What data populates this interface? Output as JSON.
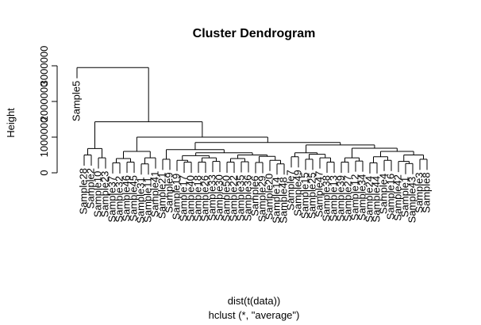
{
  "chart_data": {
    "type": "dendrogram",
    "title": "Cluster Dendrogram",
    "y_label": "Height",
    "x_label": "dist(t(data))",
    "subtitle": "hclust (*, \"average\")",
    "ylim": [
      0,
      3000000
    ],
    "yticks": [
      0,
      1000000,
      2000000,
      3000000
    ],
    "color": "#000000",
    "tree": {
      "height": 2950000,
      "children": [
        "Sample5",
        {
          "height": 1430000,
          "children": [
            {
              "height": 680000,
              "children": [
                {
                  "height": 500000,
                  "children": [
                    "Sample28",
                    "Sample2"
                  ]
                },
                {
                  "height": 420000,
                  "children": [
                    "Sample10",
                    "Sample23"
                  ]
                }
              ]
            },
            {
              "height": 1000000,
              "children": [
                {
                  "height": 600000,
                  "children": [
                    {
                      "height": 400000,
                      "children": [
                        {
                          "height": 280000,
                          "children": [
                            "Sample37",
                            "Sample32"
                          ]
                        },
                        {
                          "height": 300000,
                          "children": [
                            "Sample46",
                            "Sample45"
                          ]
                        }
                      ]
                    },
                    {
                      "height": 420000,
                      "children": [
                        {
                          "height": 250000,
                          "children": [
                            "Sample31",
                            "Sample11"
                          ]
                        },
                        "Sample41"
                      ]
                    }
                  ]
                },
                {
                  "height": 850000,
                  "children": [
                    {
                      "height": 650000,
                      "children": [
                        {
                          "height": 380000,
                          "children": [
                            "Sample21",
                            "Sample9"
                          ]
                        },
                        {
                          "height": 560000,
                          "children": [
                            {
                              "height": 480000,
                              "children": [
                                {
                                  "height": 350000,
                                  "children": [
                                    "Sample19",
                                    {
                                      "height": 300000,
                                      "children": [
                                        "Sample17",
                                        "Sample40"
                                      ]
                                    }
                                  ]
                                },
                                {
                                  "height": 420000,
                                  "children": [
                                    {
                                      "height": 300000,
                                      "children": [
                                        "Sample18",
                                        "Sample26"
                                      ]
                                    },
                                    {
                                      "height": 320000,
                                      "children": [
                                        "Sample33",
                                        "Sample30"
                                      ]
                                    }
                                  ]
                                }
                              ]
                            },
                            {
                              "height": 500000,
                              "children": [
                                {
                                  "height": 400000,
                                  "children": [
                                    {
                                      "height": 300000,
                                      "children": [
                                        "Sample50",
                                        "Sample22"
                                      ]
                                    },
                                    {
                                      "height": 310000,
                                      "children": [
                                        "Sample35",
                                        "Sample36"
                                      ]
                                    }
                                  ]
                                },
                                {
                                  "height": 460000,
                                  "children": [
                                    {
                                      "height": 290000,
                                      "children": [
                                        "Sample6",
                                        "Sample29"
                                      ]
                                    },
                                    {
                                      "height": 350000,
                                      "children": [
                                        "Sample20",
                                        {
                                          "height": 250000,
                                          "children": [
                                            "Sample14",
                                            "Sample48"
                                          ]
                                        }
                                      ]
                                    }
                                  ]
                                }
                              ]
                            }
                          ]
                        }
                      ]
                    },
                    {
                      "height": 780000,
                      "children": [
                        {
                          "height": 560000,
                          "children": [
                            {
                              "height": 450000,
                              "children": [
                                "Sample7",
                                "Sample49"
                              ]
                            },
                            {
                              "height": 520000,
                              "children": [
                                {
                                  "height": 380000,
                                  "children": [
                                    "Sample15",
                                    "Sample25"
                                  ]
                                },
                                {
                                  "height": 420000,
                                  "children": [
                                    "Sample47",
                                    {
                                      "height": 300000,
                                      "children": [
                                        "Sample38",
                                        "Sample13"
                                      ]
                                    }
                                  ]
                                }
                              ]
                            }
                          ]
                        },
                        {
                          "height": 690000,
                          "children": [
                            {
                              "height": 420000,
                              "children": [
                                {
                                  "height": 300000,
                                  "children": [
                                    "Sample39",
                                    "Sample27"
                                  ]
                                },
                                {
                                  "height": 330000,
                                  "children": [
                                    "Sample12",
                                    "Sample34"
                                  ]
                                }
                              ]
                            },
                            {
                              "height": 600000,
                              "children": [
                                {
                                  "height": 450000,
                                  "children": [
                                    {
                                      "height": 280000,
                                      "children": [
                                        "Sample24",
                                        "Sample44"
                                      ]
                                    },
                                    {
                                      "height": 350000,
                                      "children": [
                                        "Sample4",
                                        "Sample16"
                                      ]
                                    }
                                  ]
                                },
                                {
                                  "height": 500000,
                                  "children": [
                                    {
                                      "height": 320000,
                                      "children": [
                                        "Sample42",
                                        {
                                          "height": 260000,
                                          "children": [
                                            "Sample1",
                                            "Sample43"
                                          ]
                                        }
                                      ]
                                    },
                                    {
                                      "height": 380000,
                                      "children": [
                                        "Sample3",
                                        "Sample8"
                                      ]
                                    }
                                  ]
                                }
                              ]
                            }
                          ]
                        }
                      ]
                    }
                  ]
                }
              ]
            }
          ]
        }
      ]
    }
  }
}
